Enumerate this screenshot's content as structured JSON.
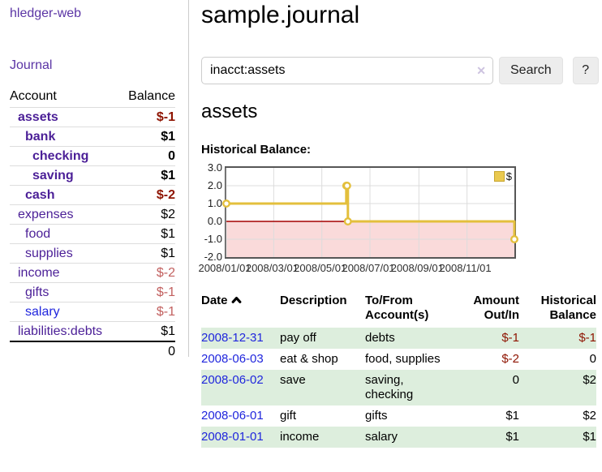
{
  "app": {
    "title": "hledger-web"
  },
  "nav": {
    "journal": "Journal"
  },
  "colors": {
    "purple_link": "#5b35a5",
    "account_link": "#4b1f97",
    "blue_link": "#2026dd",
    "negative": "#8e1300",
    "negative_muted": "#c2605f",
    "row_stripe": "#ddeedd",
    "button_bg": "#ededed"
  },
  "accounts": {
    "headers": {
      "account": "Account",
      "balance": "Balance"
    },
    "rows": [
      {
        "name": "assets",
        "balance": "$-1",
        "level": 0,
        "bold": true,
        "name_color": "purple",
        "balance_color": "negative"
      },
      {
        "name": "bank",
        "balance": "$1",
        "level": 1,
        "bold": true,
        "name_color": "purple",
        "balance_color": "default"
      },
      {
        "name": "checking",
        "balance": "0",
        "level": 2,
        "bold": true,
        "name_color": "purple",
        "balance_color": "default"
      },
      {
        "name": "saving",
        "balance": "$1",
        "level": 2,
        "bold": true,
        "name_color": "purple",
        "balance_color": "default"
      },
      {
        "name": "cash",
        "balance": "$-2",
        "level": 1,
        "bold": true,
        "name_color": "purple",
        "balance_color": "negative"
      },
      {
        "name": "expenses",
        "balance": "$2",
        "level": 0,
        "bold": false,
        "name_color": "purple",
        "balance_color": "default"
      },
      {
        "name": "food",
        "balance": "$1",
        "level": 1,
        "bold": false,
        "name_color": "purple",
        "balance_color": "default"
      },
      {
        "name": "supplies",
        "balance": "$1",
        "level": 1,
        "bold": false,
        "name_color": "purple",
        "balance_color": "default"
      },
      {
        "name": "income",
        "balance": "$-2",
        "level": 0,
        "bold": false,
        "name_color": "purple",
        "balance_color": "negative_muted"
      },
      {
        "name": "gifts",
        "balance": "$-1",
        "level": 1,
        "bold": false,
        "name_color": "purple",
        "balance_color": "negative_muted"
      },
      {
        "name": "salary",
        "balance": "$-1",
        "level": 1,
        "bold": false,
        "name_color": "blue",
        "balance_color": "negative_muted"
      },
      {
        "name": "liabilities:debts",
        "balance": "$1",
        "level": 0,
        "bold": false,
        "name_color": "purple",
        "balance_color": "default"
      }
    ],
    "total": "0"
  },
  "main": {
    "title": "sample.journal",
    "search": {
      "value": "inacct:assets",
      "clear_icon": "✕",
      "search_button": "Search",
      "help_button": "?"
    },
    "account_heading": "assets",
    "chart_heading": "Historical Balance:"
  },
  "chart_data": {
    "type": "line",
    "step": true,
    "title": "Historical Balance:",
    "series": [
      {
        "name": "$",
        "color": "#e3bf3c",
        "points": [
          {
            "date": "2008-01-01",
            "value": 1
          },
          {
            "date": "2008-06-01",
            "value": 2
          },
          {
            "date": "2008-06-02",
            "value": 2
          },
          {
            "date": "2008-06-03",
            "value": 0
          },
          {
            "date": "2008-12-31",
            "value": -1
          }
        ]
      }
    ],
    "x_range": [
      "2008-01-01",
      "2008-12-31"
    ],
    "x_ticks": [
      {
        "label": "2008/01/01",
        "date": "2008-01-01"
      },
      {
        "label": "2008/03/01",
        "date": "2008-03-01"
      },
      {
        "label": "2008/05/01",
        "date": "2008-05-01"
      },
      {
        "label": "2008/07/01",
        "date": "2008-07-01"
      },
      {
        "label": "2008/09/01",
        "date": "2008-09-01"
      },
      {
        "label": "2008/11/01",
        "date": "2008-11-01"
      }
    ],
    "y_ticks": [
      {
        "label": "3.0",
        "value": 3
      },
      {
        "label": "2.0",
        "value": 2
      },
      {
        "label": "1.0",
        "value": 1
      },
      {
        "label": "0.0",
        "value": 0
      },
      {
        "label": "-1.0",
        "value": -1
      },
      {
        "label": "-2.0",
        "value": -2
      }
    ],
    "ylim": [
      -2,
      3
    ],
    "grid": true,
    "grid_color": "#dcdcdc",
    "border_color": "#565656",
    "negative_region_color": "#fadada",
    "zero_line_color": "#a40000",
    "legend": {
      "label": "$",
      "position": "top-right",
      "swatch_fill": "#eac94f",
      "swatch_border": "#c7a62e"
    }
  },
  "register": {
    "sort_icon": "chevron-up",
    "headers": [
      "Date",
      "Description",
      "To/From\nAccount(s)",
      "Amount\nOut/In",
      "Historical\nBalance"
    ],
    "rows": [
      {
        "date": "2008-12-31",
        "description": "pay off",
        "accounts": "debts",
        "amount": "$-1",
        "amount_negative": true,
        "balance": "$-1",
        "balance_negative": true
      },
      {
        "date": "2008-06-03",
        "description": "eat & shop",
        "accounts": "food, supplies",
        "amount": "$-2",
        "amount_negative": true,
        "balance": "0",
        "balance_negative": false
      },
      {
        "date": "2008-06-02",
        "description": "save",
        "accounts": "saving,\nchecking",
        "amount": "0",
        "amount_negative": false,
        "balance": "$2",
        "balance_negative": false
      },
      {
        "date": "2008-06-01",
        "description": "gift",
        "accounts": "gifts",
        "amount": "$1",
        "amount_negative": false,
        "balance": "$2",
        "balance_negative": false
      },
      {
        "date": "2008-01-01",
        "description": "income",
        "accounts": "salary",
        "amount": "$1",
        "amount_negative": false,
        "balance": "$1",
        "balance_negative": false
      }
    ]
  }
}
